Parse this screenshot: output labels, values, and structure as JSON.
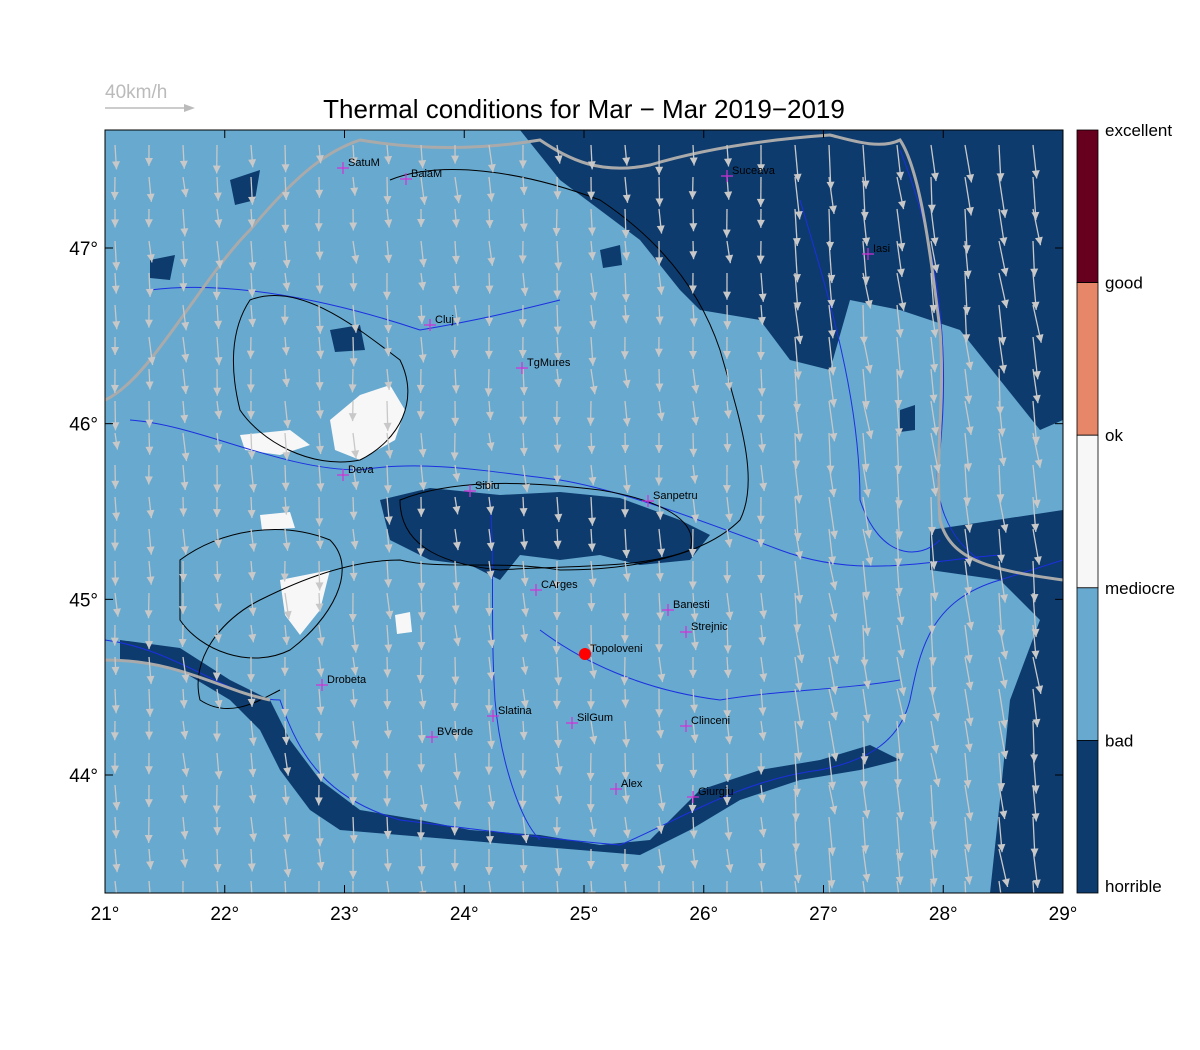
{
  "title": "Thermal conditions for Mar − Mar  2019−2019",
  "wind_scale": "40km/h",
  "x_ticks": [
    {
      "value": 21,
      "label": "21°"
    },
    {
      "value": 22,
      "label": "22°"
    },
    {
      "value": 23,
      "label": "23°"
    },
    {
      "value": 24,
      "label": "24°"
    },
    {
      "value": 25,
      "label": "25°"
    },
    {
      "value": 26,
      "label": "26°"
    },
    {
      "value": 27,
      "label": "27°"
    },
    {
      "value": 28,
      "label": "28°"
    },
    {
      "value": 29,
      "label": "29°"
    }
  ],
  "y_ticks": [
    {
      "value": 44,
      "label": "44°"
    },
    {
      "value": 45,
      "label": "45°"
    },
    {
      "value": 46,
      "label": "46°"
    },
    {
      "value": 47,
      "label": "47°"
    }
  ],
  "colorbar": {
    "labels": [
      "excellent",
      "good",
      "ok",
      "mediocre",
      "bad",
      "horrible"
    ],
    "colors": [
      "#67001f",
      "#e6876a",
      "#f7f7f7",
      "#67a9cf",
      "#0d3b6e"
    ]
  },
  "cities": [
    "SatuM",
    "BaiaM",
    "Suceava",
    "Iasi",
    "Cluj",
    "TgMures",
    "Deva",
    "Sibiu",
    "Sanpetru",
    "CArges",
    "Banesti",
    "Strejnic",
    "Topoloveni",
    "Drobeta",
    "Slatina",
    "SilGum",
    "Clinceni",
    "BVerde",
    "Alex",
    "Giurgiu"
  ]
}
